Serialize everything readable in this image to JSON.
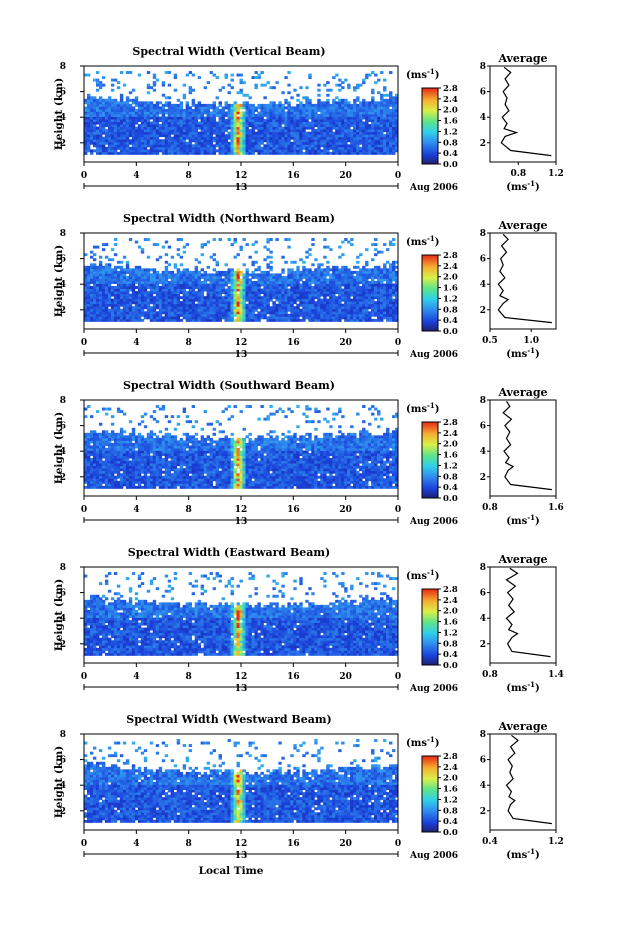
{
  "figure": {
    "time_axis_label": "Local Time",
    "height_axis_label": "Height (km)",
    "date_label": "Aug 2006",
    "colorbar_unit": "(ms",
    "colorbar_unit_exp": "-1",
    "avg_title": "Average",
    "avg_unit": "(ms",
    "avg_unit_exp": "-1"
  },
  "chart_data": [
    {
      "type": "heatmap",
      "title": "Spectral Width (Vertical Beam)",
      "xlabel": "",
      "ylabel": "Height (km)",
      "xlim": [
        0,
        24
      ],
      "x_ticks": [
        "0",
        "4",
        "8",
        "12",
        "16",
        "20",
        "0"
      ],
      "day_label": "13",
      "ylim": [
        0.5,
        8
      ],
      "y_ticks": [
        "2",
        "4",
        "6",
        "8"
      ],
      "colorbar": {
        "range": [
          0,
          2.8
        ],
        "ticks": [
          "0.0",
          "0.4",
          "0.8",
          "1.2",
          "1.6",
          "2.0",
          "2.4",
          "2.8"
        ]
      },
      "average_profile": {
        "xlim": [
          0.5,
          1.2
        ],
        "x_ticks": [
          "0.8",
          "1.2"
        ],
        "heights": [
          1.0,
          1.4,
          2.0,
          2.5,
          2.8,
          3.1,
          3.5,
          4.0,
          4.5,
          5.0,
          5.5,
          6.0,
          6.5,
          7.0,
          7.5,
          7.9
        ],
        "values": [
          1.15,
          0.72,
          0.62,
          0.66,
          0.78,
          0.65,
          0.68,
          0.63,
          0.7,
          0.66,
          0.68,
          0.64,
          0.7,
          0.66,
          0.72,
          0.65
        ]
      }
    },
    {
      "type": "heatmap",
      "title": "Spectral Width (Northward Beam)",
      "xlabel": "",
      "ylabel": "Height (km)",
      "xlim": [
        0,
        24
      ],
      "x_ticks": [
        "0",
        "4",
        "8",
        "12",
        "16",
        "20",
        "0"
      ],
      "day_label": "13",
      "ylim": [
        0.5,
        8
      ],
      "y_ticks": [
        "2",
        "4",
        "6",
        "8"
      ],
      "colorbar": {
        "range": [
          0,
          2.8
        ],
        "ticks": [
          "0.0",
          "0.4",
          "0.8",
          "1.2",
          "1.6",
          "2.0",
          "2.4",
          "2.8"
        ]
      },
      "average_profile": {
        "xlim": [
          0.5,
          1.3
        ],
        "x_ticks": [
          "0.5",
          "1.0"
        ],
        "heights": [
          1.0,
          1.4,
          2.0,
          2.5,
          2.8,
          3.1,
          3.5,
          4.0,
          4.5,
          5.0,
          5.5,
          6.0,
          6.5,
          7.0,
          7.5,
          7.9
        ],
        "values": [
          1.25,
          0.68,
          0.6,
          0.66,
          0.72,
          0.62,
          0.66,
          0.6,
          0.68,
          0.62,
          0.66,
          0.63,
          0.7,
          0.64,
          0.72,
          0.66
        ]
      }
    },
    {
      "type": "heatmap",
      "title": "Spectral Width (Southward Beam)",
      "xlabel": "",
      "ylabel": "Height (km)",
      "xlim": [
        0,
        24
      ],
      "x_ticks": [
        "0",
        "4",
        "8",
        "12",
        "16",
        "20",
        "0"
      ],
      "day_label": "13",
      "ylim": [
        0.5,
        8
      ],
      "y_ticks": [
        "2",
        "4",
        "6",
        "8"
      ],
      "colorbar": {
        "range": [
          0,
          2.8
        ],
        "ticks": [
          "0.0",
          "0.4",
          "0.8",
          "1.2",
          "1.6",
          "2.0",
          "2.4",
          "2.8"
        ]
      },
      "average_profile": {
        "xlim": [
          0.8,
          1.6
        ],
        "x_ticks": [
          "0.8",
          "1.6"
        ],
        "heights": [
          1.0,
          1.4,
          2.0,
          2.5,
          2.8,
          3.1,
          3.5,
          4.0,
          4.5,
          5.0,
          5.5,
          6.0,
          6.5,
          7.0,
          7.5,
          7.9
        ],
        "values": [
          1.55,
          1.05,
          0.98,
          1.02,
          1.08,
          0.99,
          1.03,
          0.97,
          1.05,
          1.0,
          1.04,
          0.98,
          1.06,
          0.96,
          1.04,
          1.0
        ]
      }
    },
    {
      "type": "heatmap",
      "title": "Spectral Width (Eastward Beam)",
      "xlabel": "",
      "ylabel": "Height (km)",
      "xlim": [
        0,
        24
      ],
      "x_ticks": [
        "0",
        "4",
        "8",
        "12",
        "16",
        "20",
        "0"
      ],
      "day_label": "13",
      "ylim": [
        0.5,
        8
      ],
      "y_ticks": [
        "2",
        "4",
        "6",
        "8"
      ],
      "colorbar": {
        "range": [
          0,
          2.8
        ],
        "ticks": [
          "0.0",
          "0.4",
          "0.8",
          "1.2",
          "1.6",
          "2.0",
          "2.4",
          "2.8"
        ]
      },
      "average_profile": {
        "xlim": [
          0.8,
          1.4
        ],
        "x_ticks": [
          "0.8",
          "1.4"
        ],
        "heights": [
          1.0,
          1.4,
          2.0,
          2.5,
          2.8,
          3.1,
          3.5,
          4.0,
          4.5,
          5.0,
          5.5,
          6.0,
          6.5,
          7.0,
          7.5,
          7.9
        ],
        "values": [
          1.35,
          1.0,
          0.96,
          1.0,
          1.05,
          0.97,
          1.0,
          0.95,
          1.02,
          0.97,
          1.01,
          0.96,
          1.03,
          0.95,
          1.05,
          0.98
        ]
      }
    },
    {
      "type": "heatmap",
      "title": "Spectral Width (Westward Beam)",
      "xlabel": "Local Time",
      "ylabel": "Height (km)",
      "xlim": [
        0,
        24
      ],
      "x_ticks": [
        "0",
        "4",
        "8",
        "12",
        "16",
        "20",
        "0"
      ],
      "day_label": "13",
      "ylim": [
        0.5,
        8
      ],
      "y_ticks": [
        "2",
        "4",
        "6",
        "8"
      ],
      "colorbar": {
        "range": [
          0,
          2.8
        ],
        "ticks": [
          "0.0",
          "0.4",
          "0.8",
          "1.2",
          "1.6",
          "2.0",
          "2.4",
          "2.8"
        ]
      },
      "average_profile": {
        "xlim": [
          0.4,
          1.2
        ],
        "x_ticks": [
          "0.4",
          "1.2"
        ],
        "heights": [
          1.0,
          1.4,
          2.0,
          2.5,
          2.8,
          3.1,
          3.5,
          4.0,
          4.5,
          5.0,
          5.5,
          6.0,
          6.5,
          7.0,
          7.5,
          7.9
        ],
        "values": [
          1.15,
          0.68,
          0.62,
          0.65,
          0.7,
          0.63,
          0.66,
          0.6,
          0.68,
          0.64,
          0.67,
          0.62,
          0.7,
          0.65,
          0.74,
          0.66
        ]
      }
    }
  ]
}
